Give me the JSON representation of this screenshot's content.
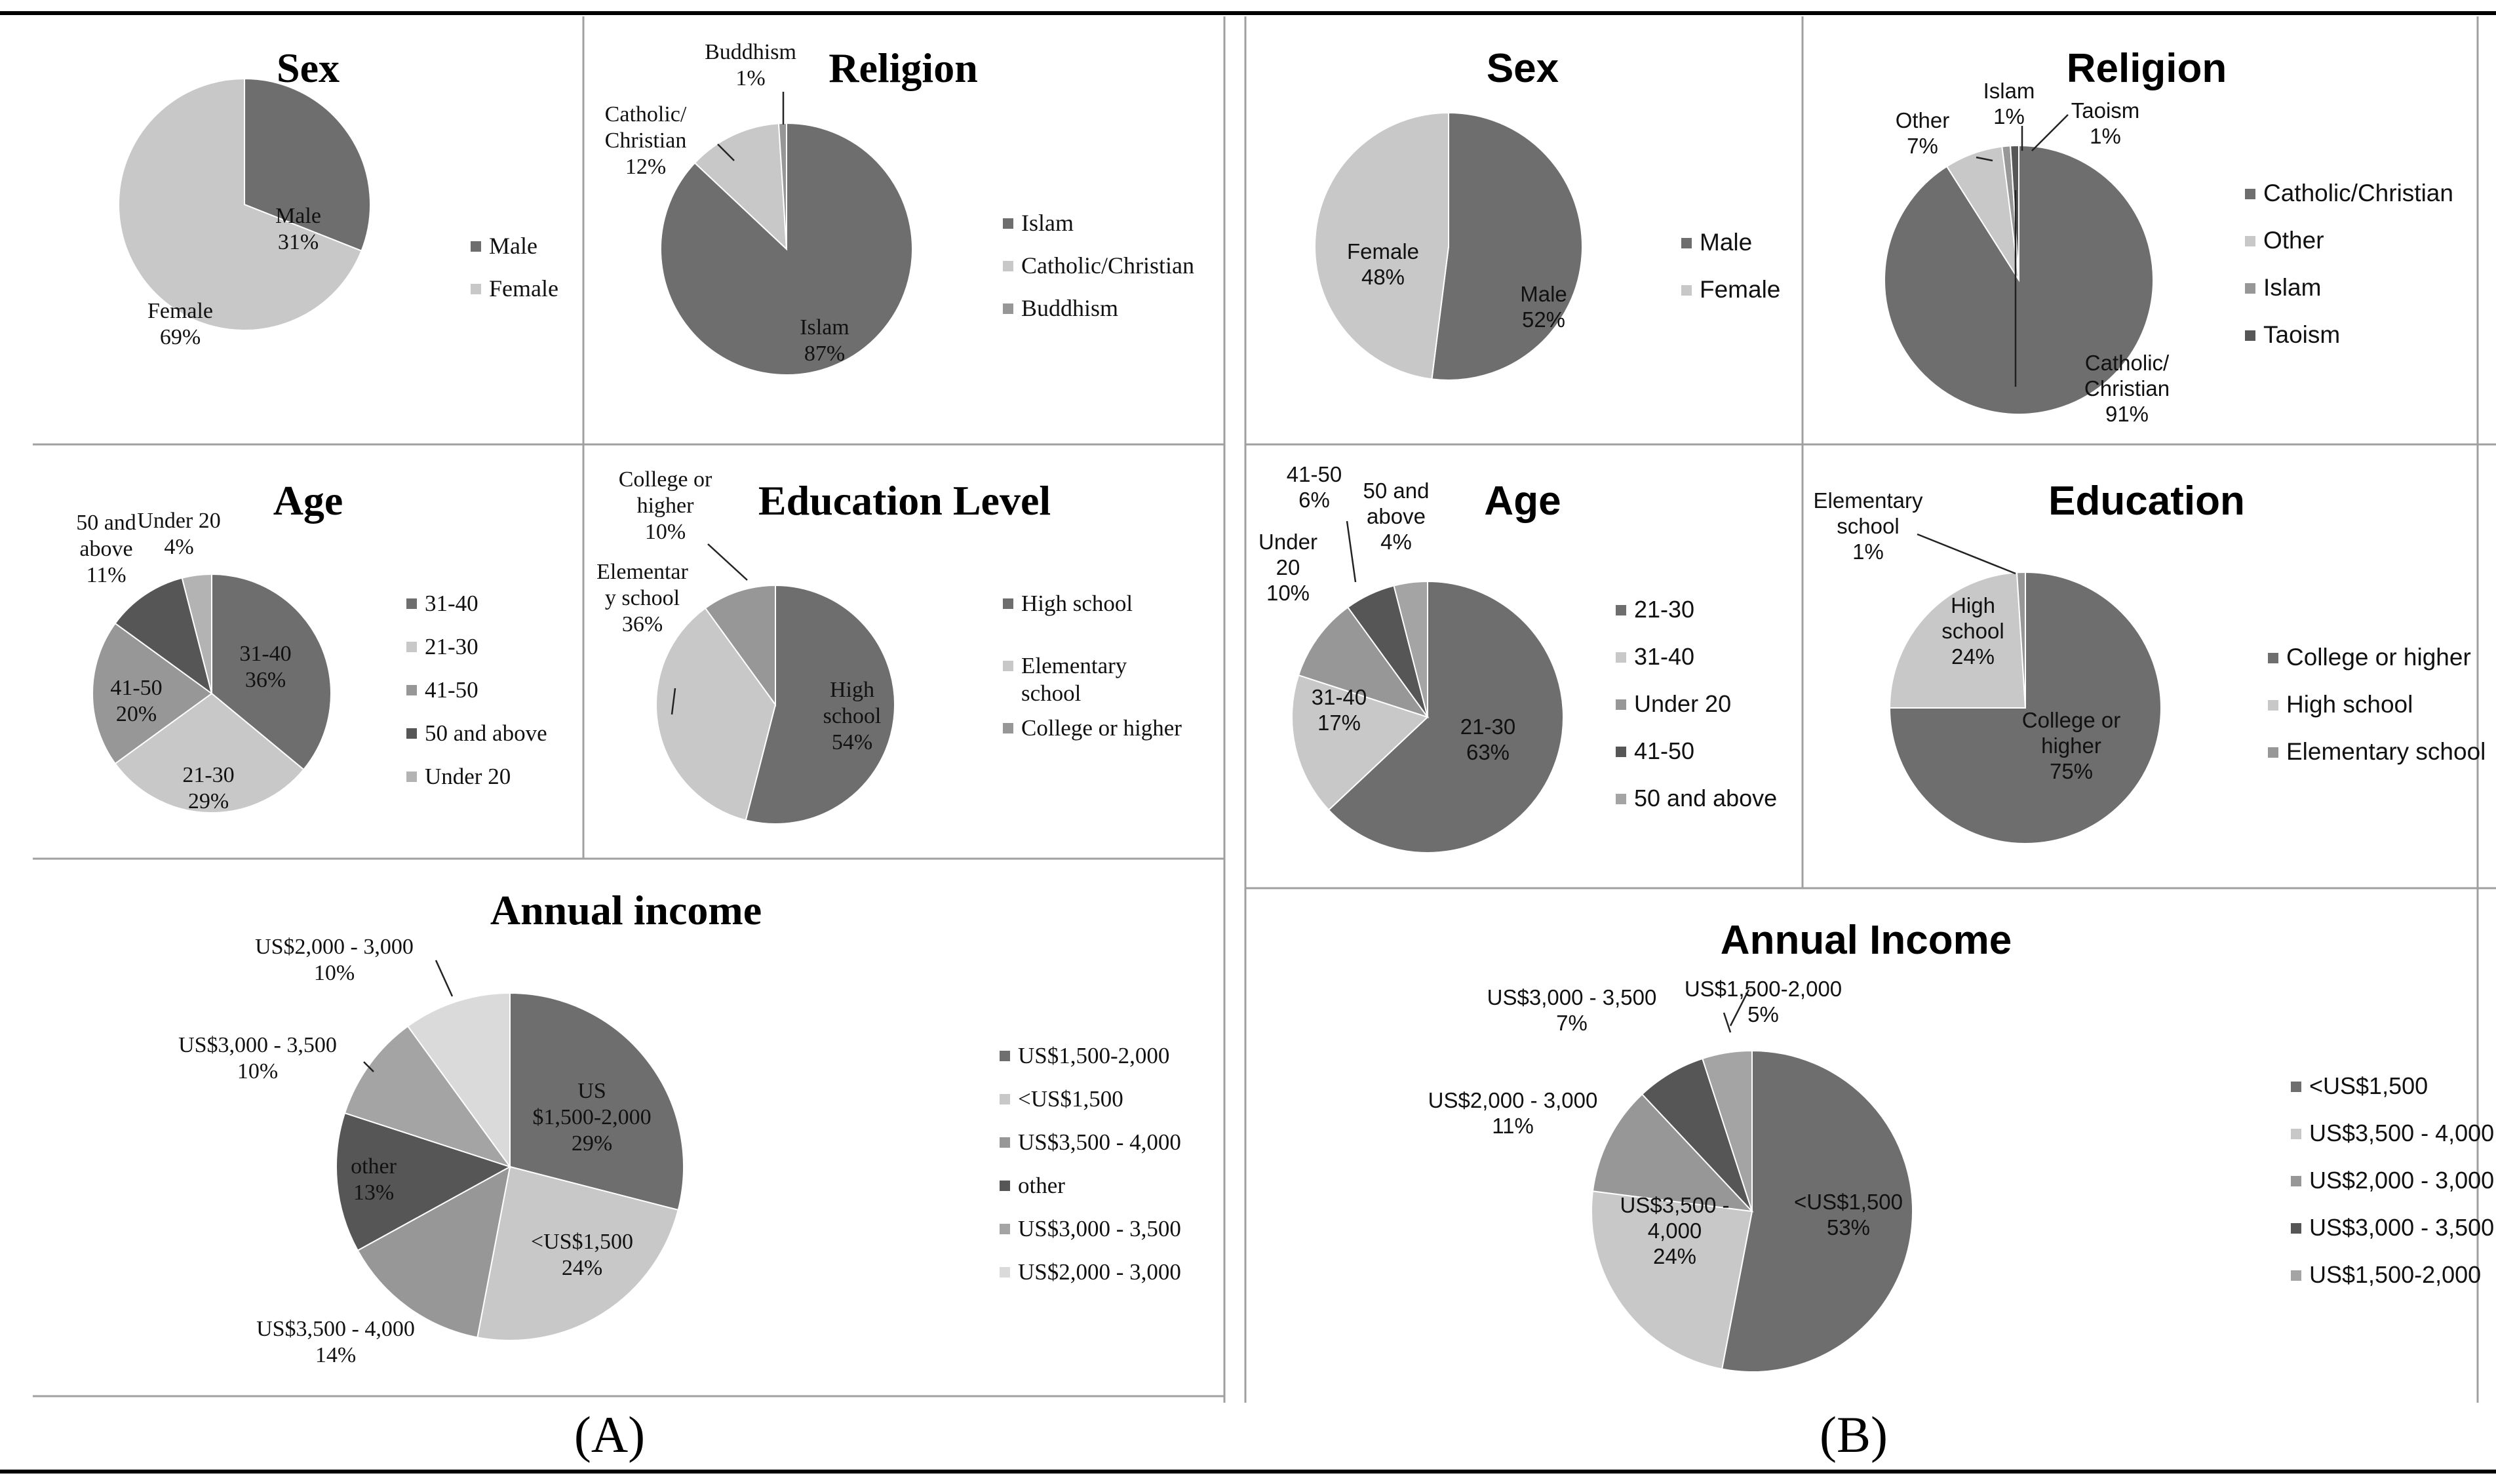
{
  "captions": {
    "left": "(A)",
    "right": "(B)"
  },
  "chart_data": [
    {
      "id": "a-sex",
      "group": "A",
      "type": "pie",
      "title": "Sex",
      "slices": [
        {
          "label": "Male",
          "value": 31,
          "color": "#6e6e6e",
          "text": [
            "Male",
            "31%"
          ]
        },
        {
          "label": "Female",
          "value": 69,
          "color": "#c8c8c8",
          "text": [
            "Female",
            "69%"
          ]
        }
      ],
      "legend": [
        "Male",
        "Female"
      ]
    },
    {
      "id": "a-religion",
      "group": "A",
      "type": "pie",
      "title": "Religion",
      "slices": [
        {
          "label": "Islam",
          "value": 87,
          "color": "#6e6e6e",
          "text": [
            "Islam",
            "87%"
          ]
        },
        {
          "label": "Catholic/Christian",
          "value": 12,
          "color": "#c8c8c8",
          "text": [
            "Catholic/",
            "Christian",
            "12%"
          ]
        },
        {
          "label": "Buddhism",
          "value": 1,
          "color": "#979797",
          "text": [
            "Buddhism",
            "1%"
          ]
        }
      ],
      "legend": [
        "Islam",
        "Catholic/Christian",
        "Buddhism"
      ]
    },
    {
      "id": "a-age",
      "group": "A",
      "type": "pie",
      "title": "Age",
      "slices": [
        {
          "label": "31-40",
          "value": 36,
          "color": "#6e6e6e",
          "text": [
            "31-40",
            "36%"
          ]
        },
        {
          "label": "21-30",
          "value": 29,
          "color": "#c8c8c8",
          "text": [
            "21-30",
            "29%"
          ]
        },
        {
          "label": "41-50",
          "value": 20,
          "color": "#979797",
          "text": [
            "41-50",
            "20%"
          ]
        },
        {
          "label": "50 and above",
          "value": 11,
          "color": "#565656",
          "text": [
            "50 and",
            "above",
            "11%"
          ]
        },
        {
          "label": "Under 20",
          "value": 4,
          "color": "#b3b3b3",
          "text": [
            "Under 20",
            "4%"
          ]
        }
      ],
      "legend": [
        "31-40",
        "21-30",
        "41-50",
        "50 and above",
        "Under 20"
      ]
    },
    {
      "id": "a-education",
      "group": "A",
      "type": "pie",
      "title": "Education Level",
      "slices": [
        {
          "label": "High school",
          "value": 54,
          "color": "#6e6e6e",
          "text": [
            "High",
            "school",
            "54%"
          ]
        },
        {
          "label": "Elementary school",
          "value": 36,
          "color": "#c8c8c8",
          "text": [
            "Elementar",
            "y school",
            "36%"
          ]
        },
        {
          "label": "College or higher",
          "value": 10,
          "color": "#979797",
          "text": [
            "College or",
            "higher",
            "10%"
          ]
        }
      ],
      "legend": [
        "High school",
        "Elementary school",
        "College or higher"
      ]
    },
    {
      "id": "a-income",
      "group": "A",
      "type": "pie",
      "title": "Annual income",
      "slices": [
        {
          "label": "US$1,500-2,000",
          "value": 29,
          "color": "#6e6e6e",
          "text": [
            "US",
            "$1,500-2,000",
            "29%"
          ]
        },
        {
          "label": "<US$1,500",
          "value": 24,
          "color": "#c8c8c8",
          "text": [
            "<US$1,500",
            "24%"
          ]
        },
        {
          "label": "US$3,500 - 4,000",
          "value": 14,
          "color": "#979797",
          "text": [
            "US$3,500 - 4,000",
            "14%"
          ]
        },
        {
          "label": "other",
          "value": 13,
          "color": "#565656",
          "text": [
            "other",
            "13%"
          ]
        },
        {
          "label": "US$3,000 - 3,500",
          "value": 10,
          "color": "#a4a4a4",
          "text": [
            "US$3,000 - 3,500",
            "10%"
          ]
        },
        {
          "label": "US$2,000 - 3,000",
          "value": 10,
          "color": "#dadada",
          "text": [
            "US$2,000 - 3,000",
            "10%"
          ]
        }
      ],
      "legend": [
        "US$1,500-2,000",
        "<US$1,500",
        "US$3,500 - 4,000",
        "other",
        "US$3,000 - 3,500",
        "US$2,000 - 3,000"
      ]
    },
    {
      "id": "b-sex",
      "group": "B",
      "type": "pie",
      "title": "Sex",
      "slices": [
        {
          "label": "Male",
          "value": 52,
          "color": "#6e6e6e",
          "text": [
            "Male",
            "52%"
          ]
        },
        {
          "label": "Female",
          "value": 48,
          "color": "#c8c8c8",
          "text": [
            "Female",
            "48%"
          ]
        }
      ],
      "legend": [
        "Male",
        "Female"
      ]
    },
    {
      "id": "b-religion",
      "group": "B",
      "type": "pie",
      "title": "Religion",
      "slices": [
        {
          "label": "Catholic/Christian",
          "value": 91,
          "color": "#6e6e6e",
          "text": [
            "Catholic/",
            "Christian",
            "91%"
          ]
        },
        {
          "label": "Other",
          "value": 7,
          "color": "#c8c8c8",
          "text": [
            "Other",
            "7%"
          ]
        },
        {
          "label": "Islam",
          "value": 1,
          "color": "#979797",
          "text": [
            "Islam",
            "1%"
          ]
        },
        {
          "label": "Taoism",
          "value": 1,
          "color": "#565656",
          "text": [
            "Taoism",
            "1%"
          ]
        }
      ],
      "legend": [
        "Catholic/Christian",
        "Other",
        "Islam",
        "Taoism"
      ]
    },
    {
      "id": "b-age",
      "group": "B",
      "type": "pie",
      "title": "Age",
      "slices": [
        {
          "label": "21-30",
          "value": 63,
          "color": "#6e6e6e",
          "text": [
            "21-30",
            "63%"
          ]
        },
        {
          "label": "31-40",
          "value": 17,
          "color": "#c8c8c8",
          "text": [
            "31-40",
            "17%"
          ]
        },
        {
          "label": "Under 20",
          "value": 10,
          "color": "#979797",
          "text": [
            "Under",
            "20",
            "10%"
          ]
        },
        {
          "label": "41-50",
          "value": 6,
          "color": "#565656",
          "text": [
            "41-50",
            "6%"
          ]
        },
        {
          "label": "50 and above",
          "value": 4,
          "color": "#a4a4a4",
          "text": [
            "50 and",
            "above",
            "4%"
          ]
        }
      ],
      "legend": [
        "21-30",
        "31-40",
        "Under 20",
        "41-50",
        "50 and above"
      ]
    },
    {
      "id": "b-education",
      "group": "B",
      "type": "pie",
      "title": "Education",
      "slices": [
        {
          "label": "College or higher",
          "value": 75,
          "color": "#6e6e6e",
          "text": [
            "College or",
            "higher",
            "75%"
          ]
        },
        {
          "label": "High school",
          "value": 24,
          "color": "#c8c8c8",
          "text": [
            "High",
            "school",
            "24%"
          ]
        },
        {
          "label": "Elementary school",
          "value": 1,
          "color": "#979797",
          "text": [
            "Elementary",
            "school",
            "1%"
          ]
        }
      ],
      "legend": [
        "College or higher",
        "High school",
        "Elementary school"
      ]
    },
    {
      "id": "b-income",
      "group": "B",
      "type": "pie",
      "title": "Annual Income",
      "slices": [
        {
          "label": "<US$1,500",
          "value": 53,
          "color": "#6e6e6e",
          "text": [
            "<US$1,500",
            "53%"
          ]
        },
        {
          "label": "US$3,500 - 4,000",
          "value": 24,
          "color": "#c8c8c8",
          "text": [
            "US$3,500 -",
            "4,000",
            "24%"
          ]
        },
        {
          "label": "US$2,000 - 3,000",
          "value": 11,
          "color": "#979797",
          "text": [
            "US$2,000 - 3,000",
            "11%"
          ]
        },
        {
          "label": "US$3,000 - 3,500",
          "value": 7,
          "color": "#565656",
          "text": [
            "US$3,000 - 3,500",
            "7%"
          ]
        },
        {
          "label": "US$1,500-2,000",
          "value": 5,
          "color": "#a4a4a4",
          "text": [
            "US$1,500-2,000",
            "5%"
          ]
        }
      ],
      "legend": [
        "<US$1,500",
        "US$3,500 - 4,000",
        "US$2,000 - 3,000",
        "US$3,000 - 3,500",
        "US$1,500-2,000"
      ]
    }
  ]
}
